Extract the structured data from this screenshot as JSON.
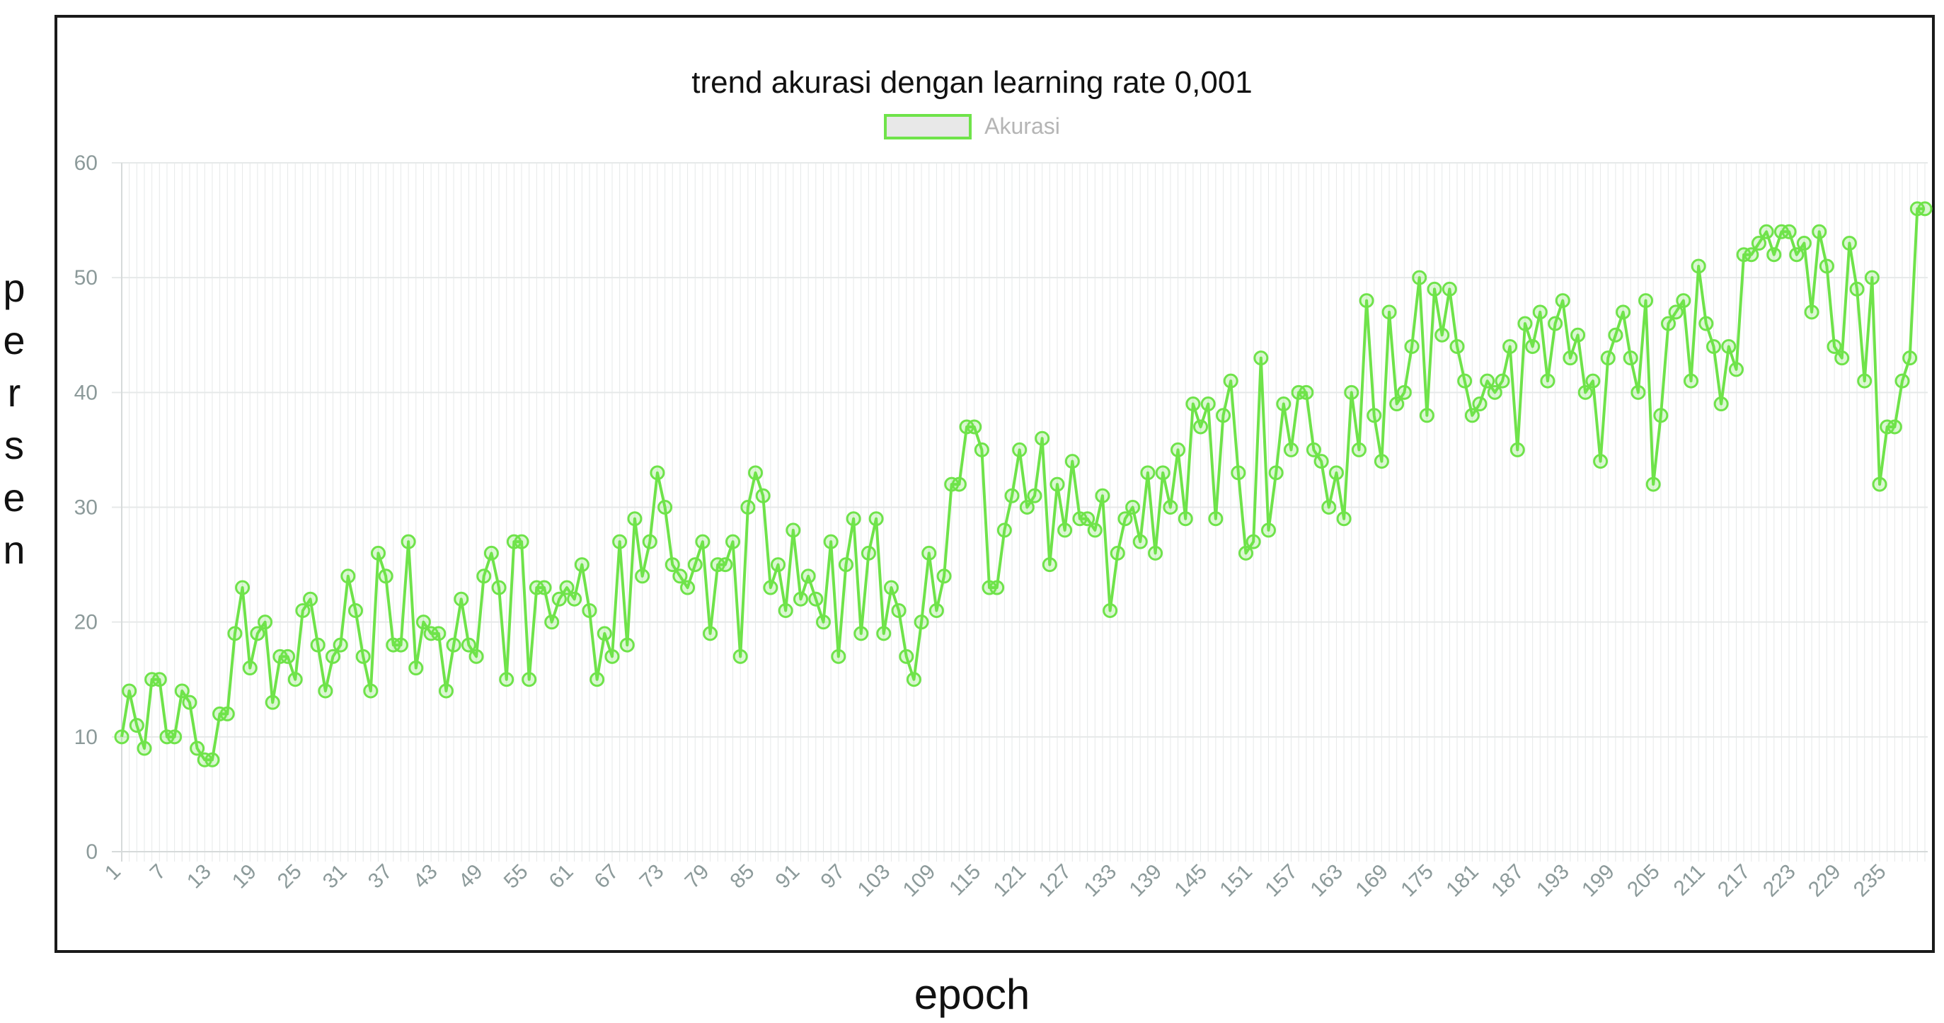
{
  "chart_data": {
    "type": "line",
    "title": "trend akurasi dengan learning rate 0,001",
    "xlabel": "epoch",
    "ylabel": "persen",
    "legend": [
      "Akurasi"
    ],
    "legend_placement": "top-center",
    "grid": true,
    "ylim": [
      0,
      60
    ],
    "yticks": [
      0,
      10,
      20,
      30,
      40,
      50,
      60
    ],
    "xticks": [
      1,
      7,
      13,
      19,
      25,
      31,
      37,
      43,
      49,
      55,
      61,
      67,
      73,
      79,
      85,
      91,
      97,
      103,
      109,
      115,
      121,
      127,
      133,
      139,
      145,
      151,
      157,
      163,
      169,
      175,
      181,
      187,
      193,
      199,
      205,
      211,
      217,
      223,
      229,
      235
    ],
    "colors": {
      "line": "#6fe34a",
      "grid": "#e6e9e9",
      "tick": "#8c9a9a"
    },
    "series": [
      {
        "name": "Akurasi",
        "values": [
          10,
          14,
          11,
          9,
          15,
          15,
          10,
          10,
          14,
          13,
          9,
          8,
          8,
          12,
          12,
          19,
          23,
          16,
          19,
          20,
          13,
          17,
          17,
          15,
          21,
          22,
          18,
          14,
          17,
          18,
          24,
          21,
          17,
          14,
          26,
          24,
          18,
          18,
          27,
          16,
          20,
          19,
          19,
          14,
          18,
          22,
          18,
          17,
          24,
          26,
          23,
          15,
          27,
          27,
          15,
          23,
          23,
          20,
          22,
          23,
          22,
          25,
          21,
          15,
          19,
          17,
          27,
          18,
          29,
          24,
          27,
          33,
          30,
          25,
          24,
          23,
          25,
          27,
          19,
          25,
          25,
          27,
          17,
          30,
          33,
          31,
          23,
          25,
          21,
          28,
          22,
          24,
          22,
          20,
          27,
          17,
          25,
          29,
          19,
          26,
          29,
          19,
          23,
          21,
          17,
          15,
          20,
          26,
          21,
          24,
          32,
          32,
          37,
          37,
          35,
          23,
          23,
          28,
          31,
          35,
          30,
          31,
          36,
          25,
          32,
          28,
          34,
          29,
          29,
          28,
          31,
          21,
          26,
          29,
          30,
          27,
          33,
          26,
          33,
          30,
          35,
          29,
          39,
          37,
          39,
          29,
          38,
          41,
          33,
          26,
          27,
          43,
          28,
          33,
          39,
          35,
          40,
          40,
          35,
          34,
          30,
          33,
          29,
          40,
          35,
          48,
          38,
          34,
          47,
          39,
          40,
          44,
          50,
          38,
          49,
          45,
          49,
          44,
          41,
          38,
          39,
          41,
          40,
          41,
          44,
          35,
          46,
          44,
          47,
          41,
          46,
          48,
          43,
          45,
          40,
          41,
          34,
          43,
          45,
          47,
          43,
          40,
          48,
          32,
          38,
          46,
          47,
          48,
          41,
          51,
          46,
          44,
          39,
          44,
          42,
          52,
          52,
          53,
          54,
          52,
          54,
          54,
          52,
          53,
          47,
          54,
          51,
          44,
          43,
          53,
          49,
          41,
          50,
          32,
          37,
          37,
          41,
          43,
          56,
          56
        ]
      }
    ]
  }
}
